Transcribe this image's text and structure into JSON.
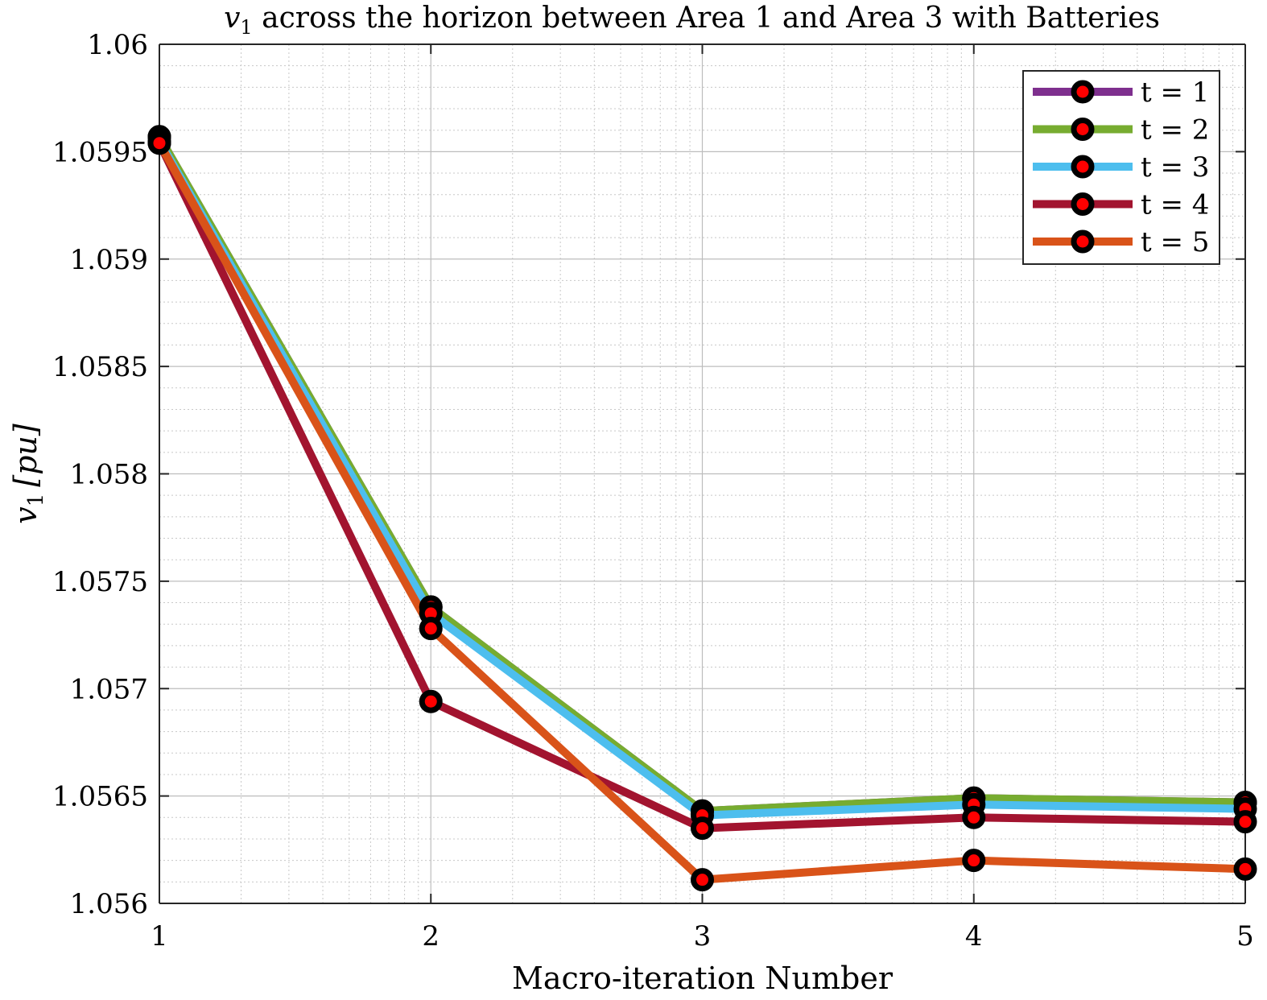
{
  "chart_data": {
    "type": "line",
    "title": {
      "var_base": "v",
      "var_sub": "1",
      "rest": " across the horizon between Area 1 and Area 3 with Batteries"
    },
    "xlabel": "Macro-iteration Number",
    "ylabel": {
      "var_base": "v",
      "var_sub": "1",
      "unit": "[pu]"
    },
    "x": [
      1,
      2,
      3,
      4,
      5
    ],
    "xlim": [
      1,
      5
    ],
    "ylim": [
      1.056,
      1.06
    ],
    "xticks": [
      1,
      2,
      3,
      4,
      5
    ],
    "yticks": [
      1.056,
      1.0565,
      1.057,
      1.0575,
      1.058,
      1.0585,
      1.059,
      1.0595,
      1.06
    ],
    "xtick_labels": [
      "1",
      "2",
      "3",
      "4",
      "5"
    ],
    "ytick_labels": [
      "1.056",
      "1.0565",
      "1.057",
      "1.0575",
      "1.058",
      "1.0585",
      "1.059",
      "1.0595",
      "1.06"
    ],
    "grid": true,
    "minor_grid": true,
    "legend_position": "top-right",
    "marker": {
      "edge_color": "#000000",
      "face_color": "#ff0000"
    },
    "series": [
      {
        "name": "t = 1",
        "color": "#7e2f8e",
        "values": [
          1.05957,
          1.05738,
          1.05643,
          1.05649,
          1.05647
        ]
      },
      {
        "name": "t = 2",
        "color": "#77ac30",
        "values": [
          1.05957,
          1.05738,
          1.05643,
          1.05649,
          1.05647
        ]
      },
      {
        "name": "t = 3",
        "color": "#4dbeee",
        "values": [
          1.05955,
          1.05735,
          1.05641,
          1.05646,
          1.05644
        ]
      },
      {
        "name": "t = 4",
        "color": "#a2142f",
        "values": [
          1.05954,
          1.05694,
          1.05635,
          1.0564,
          1.05638
        ]
      },
      {
        "name": "t = 5",
        "color": "#d95319",
        "values": [
          1.05954,
          1.05728,
          1.05611,
          1.0562,
          1.05616
        ]
      }
    ]
  }
}
